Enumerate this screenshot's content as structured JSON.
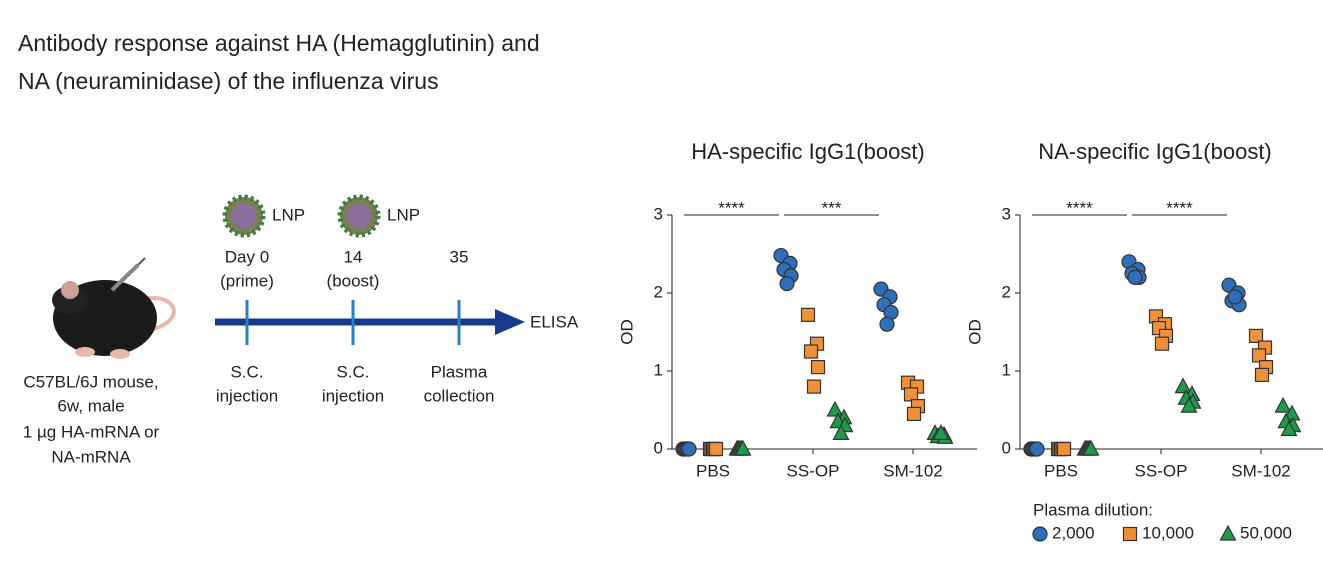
{
  "title": [
    "Antibody response against HA (Hemagglutinin) and",
    "NA (neuraminidase) of the influenza virus"
  ],
  "mouse": {
    "lines": [
      "C57BL/6J mouse,",
      "6w, male",
      "1 µg HA-mRNA or",
      "NA-mRNA"
    ]
  },
  "timeline": {
    "lnp": [
      "LNP",
      "LNP"
    ],
    "end_label": "ELISA",
    "events": [
      {
        "day": [
          "Day 0",
          "(prime)"
        ],
        "action": [
          "S.C.",
          "injection"
        ]
      },
      {
        "day": [
          "14",
          "(boost)"
        ],
        "action": [
          "S.C.",
          "injection"
        ]
      },
      {
        "day": [
          "35"
        ],
        "action": [
          "Plasma",
          "collection"
        ]
      }
    ]
  },
  "chart_data": [
    {
      "type": "dot",
      "title": "HA-specific IgG1(boost)",
      "y_label": "OD",
      "categories": [
        "PBS",
        "SS-OP",
        "SM-102"
      ],
      "ylim": [
        0,
        3
      ],
      "yticks": [
        0,
        1,
        2,
        3
      ],
      "annotations": [
        "****",
        "***"
      ],
      "legend": false,
      "series": [
        {
          "name": "2,000",
          "color": "#2f6fba",
          "marker": "circle",
          "values": [
            [
              0,
              0,
              0,
              0,
              0
            ],
            [
              2.48,
              2.38,
              2.3,
              2.22,
              2.12
            ],
            [
              2.05,
              1.95,
              1.85,
              1.75,
              1.6
            ]
          ]
        },
        {
          "name": "10,000",
          "color": "#f0913a",
          "marker": "square",
          "values": [
            [
              0,
              0,
              0,
              0,
              0
            ],
            [
              1.72,
              1.35,
              1.25,
              1.05,
              0.8
            ],
            [
              0.85,
              0.8,
              0.7,
              0.55,
              0.45
            ]
          ]
        },
        {
          "name": "50,000",
          "color": "#1f9a4a",
          "marker": "triangle",
          "values": [
            [
              0,
              0,
              0,
              0,
              0
            ],
            [
              0.5,
              0.4,
              0.35,
              0.3,
              0.2
            ],
            [
              0.2,
              0.18,
              0.16,
              0.15,
              0.2
            ]
          ]
        }
      ]
    },
    {
      "type": "dot",
      "title": "NA-specific IgG1(boost)",
      "y_label": "OD",
      "categories": [
        "PBS",
        "SS-OP",
        "SM-102"
      ],
      "ylim": [
        0,
        3
      ],
      "yticks": [
        0,
        1,
        2,
        3
      ],
      "annotations": [
        "****",
        "****"
      ],
      "legend": true,
      "legend_title": "Plasma dilution:",
      "series": [
        {
          "name": "2,000",
          "color": "#2f6fba",
          "marker": "circle",
          "values": [
            [
              0,
              0,
              0,
              0,
              0
            ],
            [
              2.4,
              2.3,
              2.25,
              2.2,
              2.2
            ],
            [
              2.1,
              2.0,
              1.9,
              1.85,
              1.95
            ]
          ]
        },
        {
          "name": "10,000",
          "color": "#f0913a",
          "marker": "square",
          "values": [
            [
              0,
              0,
              0,
              0,
              0
            ],
            [
              1.7,
              1.6,
              1.55,
              1.45,
              1.35
            ],
            [
              1.45,
              1.3,
              1.2,
              1.05,
              0.95
            ]
          ]
        },
        {
          "name": "50,000",
          "color": "#1f9a4a",
          "marker": "triangle",
          "values": [
            [
              0,
              0,
              0,
              0,
              0
            ],
            [
              0.8,
              0.7,
              0.65,
              0.6,
              0.55
            ],
            [
              0.55,
              0.45,
              0.35,
              0.3,
              0.25
            ]
          ]
        }
      ]
    }
  ]
}
